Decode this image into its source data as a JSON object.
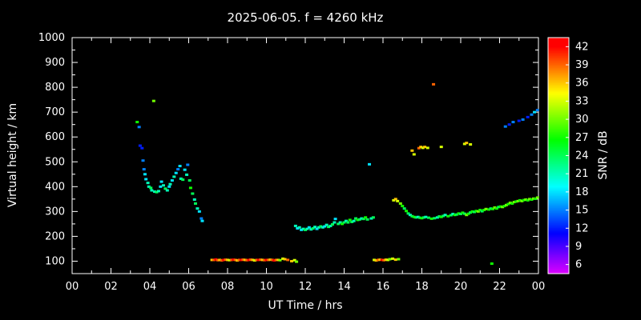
{
  "figure": {
    "background": "#000000",
    "axis_color": "#ffffff",
    "text_color": "#ffffff"
  },
  "chart_data": {
    "type": "scatter",
    "title": "2025-06-05. f = 4260 kHz",
    "xlabel": "UT Time / hrs",
    "ylabel": "Virtual height / km",
    "colorbar_label": "SNR / dB",
    "grid": false,
    "legend_position": "colorbar-right",
    "xlim": [
      0,
      24
    ],
    "ylim": [
      50,
      1000
    ],
    "xticks": {
      "values": [
        0,
        2,
        4,
        6,
        8,
        10,
        12,
        14,
        16,
        18,
        20,
        22,
        24
      ],
      "labels": [
        "00",
        "02",
        "04",
        "06",
        "08",
        "10",
        "12",
        "14",
        "16",
        "18",
        "20",
        "22",
        "00"
      ]
    },
    "yticks": [
      100,
      200,
      300,
      400,
      500,
      600,
      700,
      800,
      900,
      1000
    ],
    "colorbar": {
      "min": 4.5,
      "max": 43.5,
      "ticks": [
        6,
        9,
        12,
        15,
        18,
        21,
        24,
        27,
        30,
        33,
        36,
        39,
        42
      ],
      "scale": "rainbow"
    },
    "point_format": [
      "time_hrs",
      "virtual_height_km",
      "snr_db"
    ],
    "points": [
      [
        3.35,
        660,
        27
      ],
      [
        3.45,
        640,
        15
      ],
      [
        3.5,
        565,
        12
      ],
      [
        3.6,
        555,
        12
      ],
      [
        3.65,
        505,
        15
      ],
      [
        3.7,
        470,
        15
      ],
      [
        3.75,
        450,
        18
      ],
      [
        3.8,
        430,
        18
      ],
      [
        3.9,
        415,
        21
      ],
      [
        3.95,
        400,
        21
      ],
      [
        4.05,
        395,
        24
      ],
      [
        4.1,
        385,
        21
      ],
      [
        4.2,
        745,
        30
      ],
      [
        4.25,
        380,
        21
      ],
      [
        4.35,
        378,
        24
      ],
      [
        4.45,
        382,
        21
      ],
      [
        4.55,
        400,
        18
      ],
      [
        4.6,
        420,
        18
      ],
      [
        4.7,
        405,
        21
      ],
      [
        4.8,
        392,
        24
      ],
      [
        4.9,
        385,
        21
      ],
      [
        5.0,
        400,
        18
      ],
      [
        5.05,
        410,
        21
      ],
      [
        5.15,
        425,
        18
      ],
      [
        5.25,
        440,
        21
      ],
      [
        5.35,
        455,
        18
      ],
      [
        5.45,
        470,
        15
      ],
      [
        5.55,
        483,
        18
      ],
      [
        5.6,
        432,
        21
      ],
      [
        5.7,
        428,
        24
      ],
      [
        5.8,
        468,
        18
      ],
      [
        5.9,
        448,
        21
      ],
      [
        5.95,
        488,
        15
      ],
      [
        6.05,
        425,
        24
      ],
      [
        6.1,
        395,
        27
      ],
      [
        6.2,
        372,
        24
      ],
      [
        6.3,
        348,
        21
      ],
      [
        6.35,
        332,
        24
      ],
      [
        6.45,
        312,
        21
      ],
      [
        6.55,
        300,
        18
      ],
      [
        6.65,
        272,
        15
      ],
      [
        6.7,
        262,
        18
      ],
      [
        7.2,
        105,
        36
      ],
      [
        7.3,
        105,
        39
      ],
      [
        7.4,
        107,
        42
      ],
      [
        7.5,
        104,
        39
      ],
      [
        7.6,
        105,
        36
      ],
      [
        7.7,
        103,
        39
      ],
      [
        7.8,
        105,
        42
      ],
      [
        7.9,
        106,
        39
      ],
      [
        8.0,
        105,
        36
      ],
      [
        8.1,
        104,
        33
      ],
      [
        8.2,
        105,
        39
      ],
      [
        8.3,
        106,
        42
      ],
      [
        8.4,
        105,
        39
      ],
      [
        8.5,
        103,
        36
      ],
      [
        8.6,
        105,
        39
      ],
      [
        8.7,
        105,
        42
      ],
      [
        8.8,
        106,
        39
      ],
      [
        8.9,
        105,
        36
      ],
      [
        9.0,
        104,
        39
      ],
      [
        9.1,
        105,
        42
      ],
      [
        9.2,
        106,
        39
      ],
      [
        9.3,
        105,
        36
      ],
      [
        9.4,
        103,
        33
      ],
      [
        9.5,
        105,
        39
      ],
      [
        9.6,
        105,
        42
      ],
      [
        9.7,
        106,
        39
      ],
      [
        9.8,
        105,
        36
      ],
      [
        9.9,
        104,
        39
      ],
      [
        10.0,
        105,
        42
      ],
      [
        10.1,
        105,
        39
      ],
      [
        10.2,
        106,
        36
      ],
      [
        10.3,
        105,
        39
      ],
      [
        10.4,
        103,
        42
      ],
      [
        10.5,
        105,
        39
      ],
      [
        10.6,
        105,
        36
      ],
      [
        10.7,
        104,
        30
      ],
      [
        10.85,
        110,
        33
      ],
      [
        10.95,
        108,
        36
      ],
      [
        11.1,
        105,
        39
      ],
      [
        11.3,
        100,
        36
      ],
      [
        11.45,
        104,
        33
      ],
      [
        11.55,
        98,
        30
      ],
      [
        11.5,
        242,
        21
      ],
      [
        11.6,
        232,
        18
      ],
      [
        11.7,
        236,
        21
      ],
      [
        11.8,
        226,
        18
      ],
      [
        11.9,
        230,
        21
      ],
      [
        12.0,
        226,
        24
      ],
      [
        12.1,
        230,
        21
      ],
      [
        12.2,
        236,
        18
      ],
      [
        12.3,
        228,
        21
      ],
      [
        12.4,
        232,
        24
      ],
      [
        12.5,
        238,
        21
      ],
      [
        12.6,
        230,
        18
      ],
      [
        12.7,
        236,
        21
      ],
      [
        12.8,
        240,
        24
      ],
      [
        12.9,
        236,
        21
      ],
      [
        13.0,
        240,
        18
      ],
      [
        13.1,
        246,
        21
      ],
      [
        13.2,
        238,
        24
      ],
      [
        13.3,
        242,
        21
      ],
      [
        13.4,
        248,
        24
      ],
      [
        13.5,
        256,
        21
      ],
      [
        13.55,
        270,
        18
      ],
      [
        13.7,
        250,
        24
      ],
      [
        13.8,
        256,
        21
      ],
      [
        13.9,
        250,
        27
      ],
      [
        14.0,
        256,
        24
      ],
      [
        14.1,
        262,
        21
      ],
      [
        14.2,
        256,
        24
      ],
      [
        14.3,
        266,
        27
      ],
      [
        14.4,
        258,
        24
      ],
      [
        14.5,
        262,
        21
      ],
      [
        14.6,
        272,
        24
      ],
      [
        14.7,
        266,
        27
      ],
      [
        14.8,
        268,
        24
      ],
      [
        14.9,
        272,
        21
      ],
      [
        15.0,
        270,
        24
      ],
      [
        15.1,
        276,
        27
      ],
      [
        15.2,
        268,
        24
      ],
      [
        15.3,
        490,
        18
      ],
      [
        15.4,
        272,
        21
      ],
      [
        15.5,
        276,
        24
      ],
      [
        15.55,
        105,
        33
      ],
      [
        15.65,
        103,
        36
      ],
      [
        15.75,
        105,
        39
      ],
      [
        15.85,
        106,
        36
      ],
      [
        15.95,
        105,
        42
      ],
      [
        16.05,
        104,
        39
      ],
      [
        16.15,
        106,
        36
      ],
      [
        16.25,
        105,
        33
      ],
      [
        16.35,
        108,
        30
      ],
      [
        16.5,
        110,
        33
      ],
      [
        16.65,
        106,
        36
      ],
      [
        16.8,
        108,
        30
      ],
      [
        16.55,
        345,
        33
      ],
      [
        16.65,
        350,
        36
      ],
      [
        16.75,
        342,
        33
      ],
      [
        16.9,
        332,
        30
      ],
      [
        17.0,
        322,
        27
      ],
      [
        17.1,
        312,
        24
      ],
      [
        17.2,
        302,
        27
      ],
      [
        17.3,
        292,
        24
      ],
      [
        17.4,
        286,
        21
      ],
      [
        17.5,
        281,
        24
      ],
      [
        17.6,
        278,
        27
      ],
      [
        17.7,
        276,
        24
      ],
      [
        17.8,
        278,
        21
      ],
      [
        17.9,
        275,
        24
      ],
      [
        18.0,
        273,
        27
      ],
      [
        18.1,
        276,
        24
      ],
      [
        18.2,
        278,
        21
      ],
      [
        18.35,
        275,
        24
      ],
      [
        18.5,
        271,
        27
      ],
      [
        18.65,
        273,
        24
      ],
      [
        18.8,
        276,
        21
      ],
      [
        18.9,
        280,
        24
      ],
      [
        19.0,
        278,
        27
      ],
      [
        19.1,
        282,
        24
      ],
      [
        19.2,
        286,
        21
      ],
      [
        19.35,
        281,
        27
      ],
      [
        19.5,
        285,
        24
      ],
      [
        19.6,
        290,
        21
      ],
      [
        19.7,
        286,
        27
      ],
      [
        19.8,
        288,
        24
      ],
      [
        19.9,
        292,
        27
      ],
      [
        20.0,
        290,
        24
      ],
      [
        20.1,
        295,
        27
      ],
      [
        20.2,
        291,
        24
      ],
      [
        20.3,
        286,
        30
      ],
      [
        20.4,
        291,
        27
      ],
      [
        20.5,
        296,
        24
      ],
      [
        20.6,
        300,
        27
      ],
      [
        20.7,
        298,
        24
      ],
      [
        20.8,
        302,
        27
      ],
      [
        20.9,
        300,
        30
      ],
      [
        21.0,
        306,
        27
      ],
      [
        21.1,
        301,
        24
      ],
      [
        21.2,
        306,
        27
      ],
      [
        21.3,
        310,
        30
      ],
      [
        21.45,
        308,
        27
      ],
      [
        21.55,
        312,
        24
      ],
      [
        21.65,
        310,
        27
      ],
      [
        21.75,
        316,
        30
      ],
      [
        21.85,
        312,
        27
      ],
      [
        21.95,
        318,
        24
      ],
      [
        22.05,
        320,
        27
      ],
      [
        22.15,
        318,
        30
      ],
      [
        22.25,
        322,
        27
      ],
      [
        22.35,
        326,
        30
      ],
      [
        22.45,
        330,
        27
      ],
      [
        22.55,
        335,
        30
      ],
      [
        22.65,
        332,
        27
      ],
      [
        22.75,
        338,
        30
      ],
      [
        22.85,
        340,
        27
      ],
      [
        22.95,
        342,
        30
      ],
      [
        23.05,
        345,
        27
      ],
      [
        23.15,
        342,
        30
      ],
      [
        23.25,
        346,
        27
      ],
      [
        23.35,
        348,
        30
      ],
      [
        23.45,
        345,
        27
      ],
      [
        23.55,
        350,
        30
      ],
      [
        23.65,
        348,
        27
      ],
      [
        23.75,
        352,
        30
      ],
      [
        23.85,
        351,
        27
      ],
      [
        23.95,
        356,
        30
      ],
      [
        17.5,
        545,
        36
      ],
      [
        17.6,
        530,
        33
      ],
      [
        17.85,
        555,
        39
      ],
      [
        17.95,
        560,
        36
      ],
      [
        18.05,
        556,
        33
      ],
      [
        18.15,
        560,
        36
      ],
      [
        18.3,
        556,
        33
      ],
      [
        18.6,
        812,
        39
      ],
      [
        19.0,
        560,
        33
      ],
      [
        20.2,
        572,
        33
      ],
      [
        20.3,
        576,
        36
      ],
      [
        20.5,
        570,
        33
      ],
      [
        22.3,
        642,
        15
      ],
      [
        22.5,
        650,
        12
      ],
      [
        22.7,
        660,
        15
      ],
      [
        23.0,
        665,
        12
      ],
      [
        23.2,
        670,
        15
      ],
      [
        23.45,
        680,
        12
      ],
      [
        23.65,
        690,
        15
      ],
      [
        23.8,
        700,
        18
      ],
      [
        23.95,
        708,
        15
      ],
      [
        21.6,
        90,
        27
      ]
    ]
  }
}
